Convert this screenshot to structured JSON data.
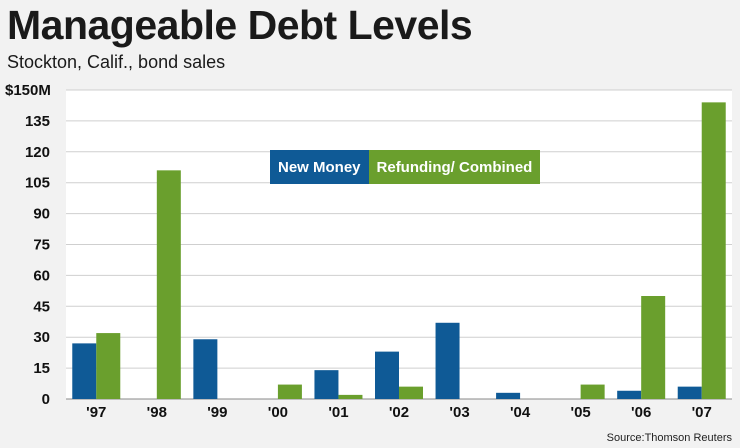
{
  "chart_data": {
    "type": "bar",
    "title": "Manageable Debt Levels",
    "subtitle": "Stockton, Calif., bond sales",
    "source": "Source:Thomson Reuters",
    "categories": [
      "'97",
      "'98",
      "'99",
      "'00",
      "'01",
      "'02",
      "'03",
      "'04",
      "'05",
      "'06",
      "'07"
    ],
    "series": [
      {
        "name": "New Money",
        "color": "#0f5a96",
        "values": [
          27,
          0,
          29,
          0,
          14,
          23,
          37,
          3,
          0,
          4,
          6
        ]
      },
      {
        "name": "Refunding/ Combined",
        "color": "#6a9f2d",
        "values": [
          32,
          111,
          0,
          7,
          2,
          6,
          0,
          0,
          7,
          50,
          144
        ]
      }
    ],
    "ylim": [
      0,
      150
    ],
    "yticks": [
      "0",
      "15",
      "30",
      "45",
      "60",
      "75",
      "90",
      "105",
      "120",
      "135",
      "$150M"
    ],
    "grid": true
  }
}
